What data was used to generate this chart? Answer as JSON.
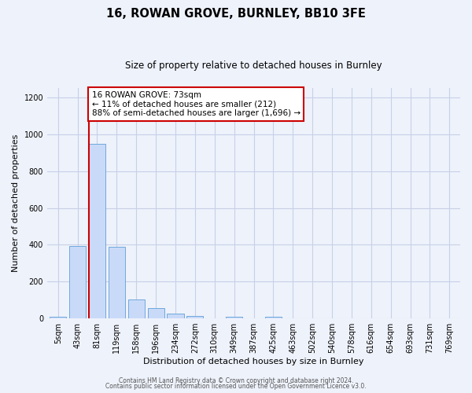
{
  "title": "16, ROWAN GROVE, BURNLEY, BB10 3FE",
  "subtitle": "Size of property relative to detached houses in Burnley",
  "xlabel": "Distribution of detached houses by size in Burnley",
  "ylabel": "Number of detached properties",
  "bar_labels": [
    "5sqm",
    "43sqm",
    "81sqm",
    "119sqm",
    "158sqm",
    "196sqm",
    "234sqm",
    "272sqm",
    "310sqm",
    "349sqm",
    "387sqm",
    "425sqm",
    "463sqm",
    "502sqm",
    "540sqm",
    "578sqm",
    "616sqm",
    "654sqm",
    "693sqm",
    "731sqm",
    "769sqm"
  ],
  "bar_values": [
    10,
    395,
    950,
    390,
    105,
    55,
    25,
    15,
    0,
    10,
    0,
    10,
    0,
    0,
    0,
    0,
    0,
    0,
    0,
    0,
    0
  ],
  "bar_color": "#c9daf8",
  "bar_edge_color": "#6fa8dc",
  "annotation_line1": "16 ROWAN GROVE: 73sqm",
  "annotation_line2": "← 11% of detached houses are smaller (212)",
  "annotation_line3": "88% of semi-detached houses are larger (1,696) →",
  "red_line_color": "#cc0000",
  "red_line_x": 1.575,
  "ylim": [
    0,
    1250
  ],
  "yticks": [
    0,
    200,
    400,
    600,
    800,
    1000,
    1200
  ],
  "footer_line1": "Contains HM Land Registry data © Crown copyright and database right 2024.",
  "footer_line2": "Contains public sector information licensed under the Open Government Licence v3.0.",
  "bg_color": "#eef2fb",
  "grid_color": "#c8d0e8",
  "annotation_box_color": "#ffffff",
  "annotation_box_edge_color": "#cc0000",
  "title_fontsize": 10.5,
  "subtitle_fontsize": 8.5,
  "axis_label_fontsize": 8,
  "tick_fontsize": 7,
  "annotation_fontsize": 7.5,
  "footer_fontsize": 5.5
}
